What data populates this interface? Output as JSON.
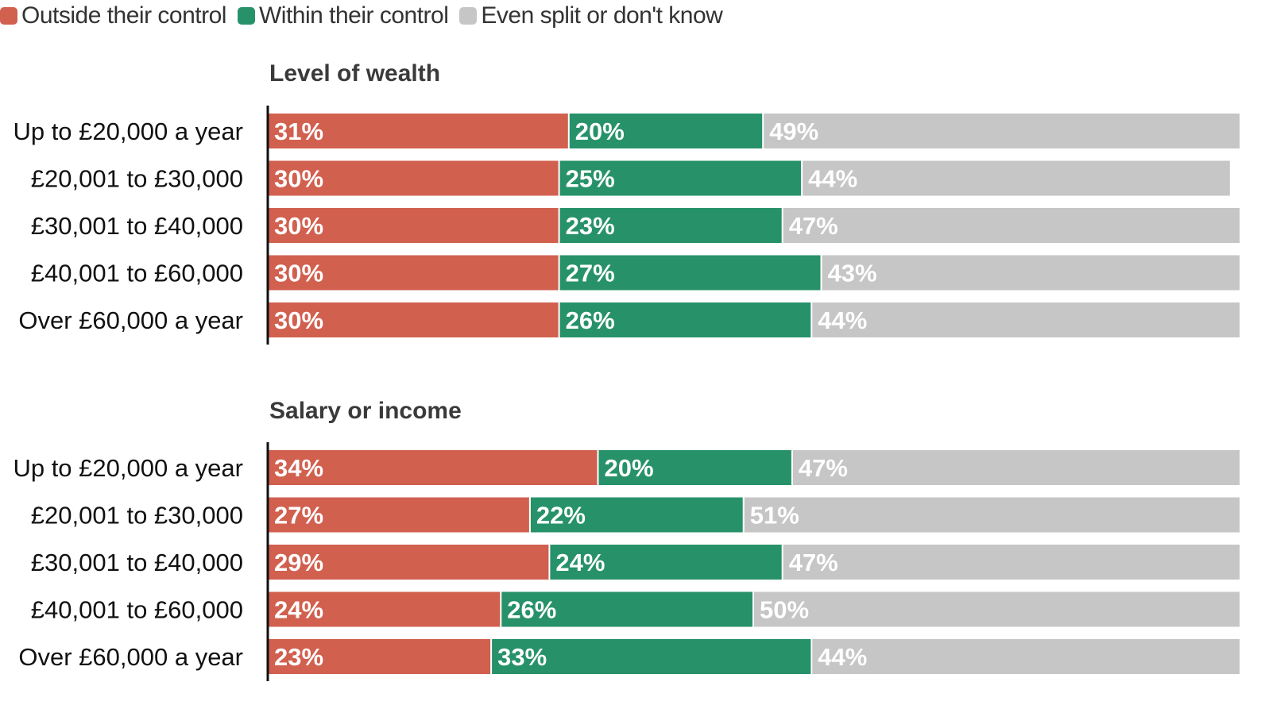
{
  "legend": [
    {
      "label": "Outside their control",
      "color": "#d1604f"
    },
    {
      "label": "Within their control",
      "color": "#27926a"
    },
    {
      "label": "Even split or don't know",
      "color": "#c6c6c6"
    }
  ],
  "chart_data": [
    {
      "type": "bar",
      "orientation": "horizontal",
      "stacked": true,
      "title": "Level of wealth",
      "categories": [
        "Up to £20,000 a year",
        "£20,001 to £30,000",
        "£30,001 to £40,000",
        "£40,001 to £60,000",
        "Over £60,000 a year"
      ],
      "series": [
        {
          "name": "Outside their control",
          "values": [
            31,
            30,
            30,
            30,
            30
          ],
          "labels": [
            "31%",
            "30%",
            "30%",
            "30%",
            "30%"
          ],
          "color": "#d1604f"
        },
        {
          "name": "Within their control",
          "values": [
            20,
            25,
            23,
            27,
            26
          ],
          "labels": [
            "20%",
            "25%",
            "23%",
            "27%",
            "26%"
          ],
          "color": "#27926a"
        },
        {
          "name": "Even split or don't know",
          "values": [
            49,
            44,
            47,
            43,
            44
          ],
          "labels": [
            "49%",
            "44%",
            "47%",
            "43%",
            "44%"
          ],
          "color": "#c6c6c6"
        }
      ],
      "xlim": [
        0,
        100
      ]
    },
    {
      "type": "bar",
      "orientation": "horizontal",
      "stacked": true,
      "title": "Salary or income",
      "categories": [
        "Up to £20,000 a year",
        "£20,001 to £30,000",
        "£30,001 to £40,000",
        "£40,001 to £60,000",
        "Over £60,000 a year"
      ],
      "series": [
        {
          "name": "Outside their control",
          "values": [
            34,
            27,
            29,
            24,
            23
          ],
          "labels": [
            "34%",
            "27%",
            "29%",
            "24%",
            "23%"
          ],
          "color": "#d1604f"
        },
        {
          "name": "Within their control",
          "values": [
            20,
            22,
            24,
            26,
            33
          ],
          "labels": [
            "20%",
            "22%",
            "24%",
            "26%",
            "33%"
          ],
          "color": "#27926a"
        },
        {
          "name": "Even split or don't know",
          "values": [
            47,
            51,
            47,
            50,
            44
          ],
          "labels": [
            "47%",
            "51%",
            "47%",
            "50%",
            "44%"
          ],
          "color": "#c6c6c6"
        }
      ],
      "xlim": [
        0,
        100
      ]
    }
  ]
}
